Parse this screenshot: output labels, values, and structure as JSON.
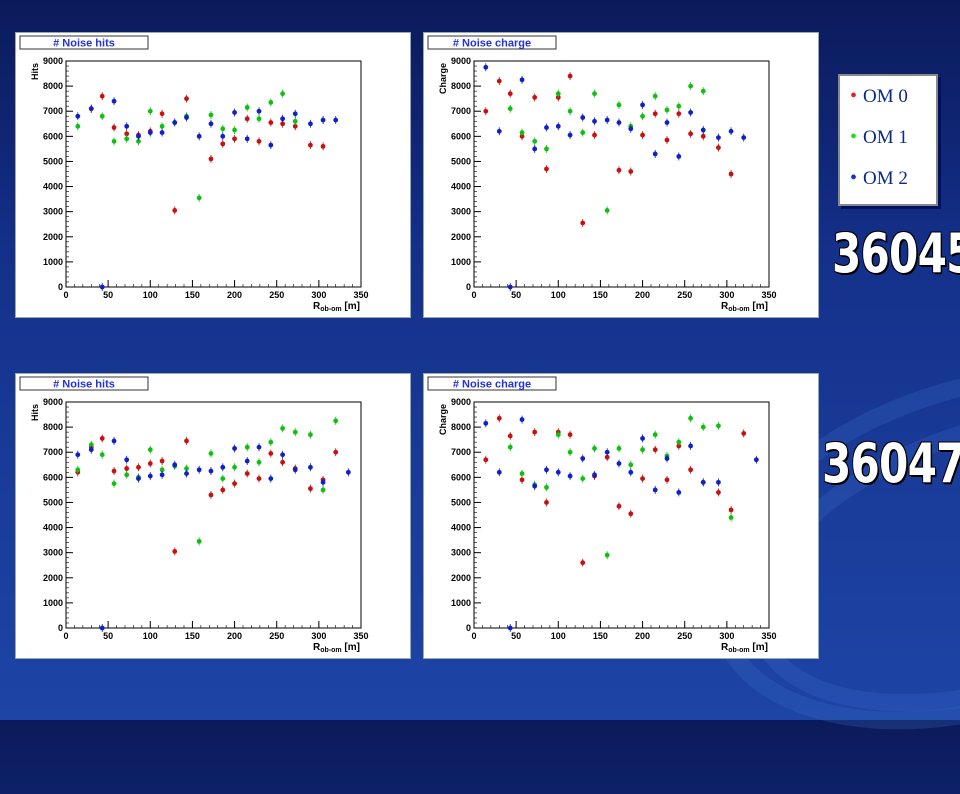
{
  "legend": {
    "items": [
      {
        "label": "OM 0",
        "color": "#e8202a"
      },
      {
        "label": "OM 1",
        "color": "#22dd22"
      },
      {
        "label": "OM 2",
        "color": "#1a2ad8"
      }
    ]
  },
  "runs": [
    "36045",
    "36047"
  ],
  "colors": {
    "om0": "#c81010",
    "om1": "#10c010",
    "om2": "#1020c8",
    "title_text": "#2233dd"
  },
  "chart_data": [
    {
      "type": "scatter",
      "title": "# Noise hits",
      "xlabel": "R",
      "xlabel_sub": "ob-om",
      "xlabel_unit": " [m]",
      "ylabel": "Hits",
      "xlim": [
        0,
        350
      ],
      "ylim": [
        0,
        9000
      ],
      "xticks": [
        0,
        50,
        100,
        150,
        200,
        250,
        300,
        350
      ],
      "yticks": [
        0,
        1000,
        2000,
        3000,
        4000,
        5000,
        6000,
        7000,
        8000,
        9000
      ],
      "series": [
        {
          "x": [
            30,
            43,
            57,
            72,
            86,
            100,
            114,
            129,
            143,
            172,
            186,
            200,
            215,
            229,
            243,
            257,
            272,
            290,
            305
          ],
          "y": [
            7100,
            7600,
            6350,
            6100,
            6050,
            6200,
            6900,
            3050,
            7500,
            5100,
            5700,
            5900,
            6700,
            5800,
            6550,
            6500,
            6400,
            5650,
            5600
          ]
        },
        {
          "x": [
            14,
            43,
            57,
            72,
            86,
            100,
            114,
            129,
            143,
            158,
            172,
            186,
            200,
            215,
            229,
            243,
            257,
            272
          ],
          "y": [
            6400,
            6800,
            5800,
            5900,
            5800,
            7000,
            6400,
            6550,
            6800,
            3550,
            6850,
            6300,
            6250,
            7150,
            6700,
            7350,
            7700,
            6600
          ]
        },
        {
          "x": [
            14,
            30,
            43,
            57,
            72,
            86,
            100,
            114,
            129,
            143,
            158,
            172,
            186,
            200,
            215,
            229,
            243,
            257,
            272,
            290,
            305,
            320
          ],
          "y": [
            6800,
            7100,
            0,
            7400,
            6400,
            6000,
            6150,
            6150,
            6550,
            6750,
            6000,
            6500,
            6000,
            6950,
            5900,
            7000,
            5650,
            6700,
            6900,
            6500,
            6650,
            6650
          ]
        }
      ]
    },
    {
      "type": "scatter",
      "title": "# Noise charge",
      "xlabel": "R",
      "xlabel_sub": "ob-om",
      "xlabel_unit": " [m]",
      "ylabel": "Charge",
      "xlim": [
        0,
        350
      ],
      "ylim": [
        0,
        9000
      ],
      "xticks": [
        0,
        50,
        100,
        150,
        200,
        250,
        300,
        350
      ],
      "yticks": [
        0,
        1000,
        2000,
        3000,
        4000,
        5000,
        6000,
        7000,
        8000,
        9000
      ],
      "series": [
        {
          "x": [
            14,
            30,
            43,
            57,
            72,
            86,
            100,
            114,
            129,
            143,
            172,
            186,
            200,
            215,
            229,
            243,
            257,
            272,
            290,
            305
          ],
          "y": [
            7000,
            8200,
            7700,
            6000,
            7550,
            4700,
            7550,
            8400,
            2550,
            6050,
            4650,
            4600,
            6050,
            6900,
            5850,
            6900,
            6100,
            6000,
            5550,
            4500
          ]
        },
        {
          "x": [
            43,
            57,
            72,
            86,
            100,
            114,
            129,
            143,
            158,
            172,
            186,
            200,
            215,
            229,
            243,
            257,
            272
          ],
          "y": [
            7100,
            6150,
            5800,
            5500,
            7700,
            7000,
            6150,
            7700,
            3050,
            7250,
            6400,
            6800,
            7600,
            7050,
            7200,
            8000,
            7800
          ]
        },
        {
          "x": [
            14,
            30,
            43,
            57,
            72,
            86,
            100,
            114,
            129,
            143,
            158,
            172,
            186,
            200,
            215,
            229,
            243,
            257,
            272,
            290,
            305,
            320
          ],
          "y": [
            8750,
            6200,
            0,
            8250,
            5500,
            6350,
            6400,
            6050,
            6750,
            6600,
            6650,
            6550,
            6300,
            7250,
            5300,
            6550,
            5200,
            6950,
            6250,
            5950,
            6200,
            5950
          ]
        }
      ]
    },
    {
      "type": "scatter",
      "title": "# Noise hits",
      "xlabel": "R",
      "xlabel_sub": "ob-om",
      "xlabel_unit": " [m]",
      "ylabel": "Hits",
      "xlim": [
        0,
        350
      ],
      "ylim": [
        0,
        9000
      ],
      "xticks": [
        0,
        50,
        100,
        150,
        200,
        250,
        300,
        350
      ],
      "yticks": [
        0,
        1000,
        2000,
        3000,
        4000,
        5000,
        6000,
        7000,
        8000,
        9000
      ],
      "series": [
        {
          "x": [
            14,
            30,
            43,
            57,
            72,
            86,
            100,
            114,
            129,
            143,
            172,
            186,
            200,
            215,
            229,
            243,
            257,
            272,
            290,
            305,
            320
          ],
          "y": [
            6200,
            7200,
            7550,
            6250,
            6350,
            6400,
            6550,
            6650,
            3050,
            7450,
            5300,
            5500,
            5750,
            6150,
            5950,
            6950,
            6600,
            6350,
            5550,
            5900,
            7000
          ]
        },
        {
          "x": [
            14,
            30,
            43,
            57,
            72,
            86,
            100,
            114,
            129,
            143,
            158,
            172,
            186,
            200,
            215,
            229,
            243,
            257,
            272,
            290,
            305,
            320
          ],
          "y": [
            6300,
            7300,
            6900,
            5750,
            6100,
            6000,
            7100,
            6300,
            6450,
            6350,
            3450,
            6950,
            5950,
            6400,
            7200,
            6600,
            7400,
            7950,
            7800,
            7700,
            5500,
            8250
          ]
        },
        {
          "x": [
            14,
            30,
            43,
            57,
            72,
            86,
            100,
            114,
            129,
            143,
            158,
            172,
            186,
            200,
            215,
            229,
            243,
            257,
            272,
            290,
            305,
            335
          ],
          "y": [
            6900,
            7100,
            0,
            7450,
            6700,
            5950,
            6050,
            6100,
            6500,
            6150,
            6300,
            6250,
            6400,
            7150,
            6650,
            7200,
            5950,
            6900,
            6300,
            6400,
            5800,
            6200
          ]
        }
      ]
    },
    {
      "type": "scatter",
      "title": "# Noise charge",
      "xlabel": "R",
      "xlabel_sub": "ob-om",
      "xlabel_unit": " [m]",
      "ylabel": "Charge",
      "xlim": [
        0,
        350
      ],
      "ylim": [
        0,
        9000
      ],
      "xticks": [
        0,
        50,
        100,
        150,
        200,
        250,
        300,
        350
      ],
      "yticks": [
        0,
        1000,
        2000,
        3000,
        4000,
        5000,
        6000,
        7000,
        8000,
        9000
      ],
      "series": [
        {
          "x": [
            14,
            30,
            43,
            57,
            72,
            86,
            100,
            114,
            129,
            143,
            158,
            172,
            186,
            200,
            215,
            229,
            243,
            257,
            272,
            290,
            305,
            320
          ],
          "y": [
            6700,
            8350,
            7650,
            5900,
            7800,
            5000,
            7800,
            7700,
            2600,
            6050,
            6800,
            4850,
            4550,
            5950,
            7100,
            5900,
            7250,
            6300,
            5800,
            5400,
            4700,
            7750
          ]
        },
        {
          "x": [
            43,
            57,
            72,
            86,
            100,
            114,
            129,
            143,
            158,
            172,
            186,
            200,
            215,
            229,
            243,
            257,
            272,
            290,
            305
          ],
          "y": [
            7200,
            6150,
            5700,
            5600,
            7700,
            7000,
            5950,
            7150,
            2900,
            7150,
            6500,
            7100,
            7700,
            6850,
            7400,
            8350,
            8000,
            8050,
            4400
          ]
        },
        {
          "x": [
            14,
            30,
            43,
            57,
            72,
            86,
            100,
            114,
            129,
            143,
            158,
            172,
            186,
            200,
            215,
            229,
            243,
            257,
            272,
            290,
            335
          ],
          "y": [
            8150,
            6200,
            0,
            8300,
            5650,
            6300,
            6200,
            6050,
            6750,
            6100,
            7000,
            6550,
            6200,
            7550,
            5500,
            6750,
            5400,
            7250,
            5800,
            5800,
            6700
          ]
        }
      ]
    }
  ]
}
